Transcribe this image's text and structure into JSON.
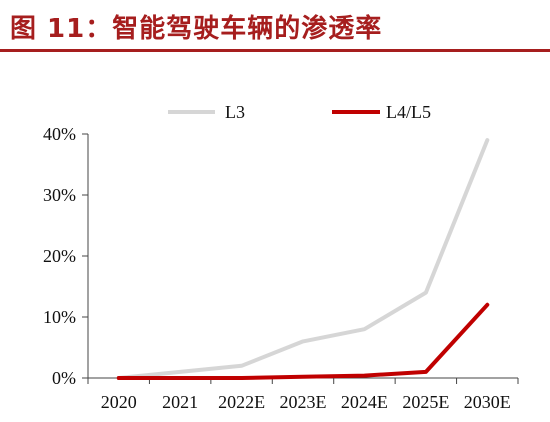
{
  "header": {
    "title": "图 11：智能驾驶车辆的渗透率"
  },
  "colors": {
    "title": "#a61e1e",
    "rule": "#a61e1e",
    "l3": "#d6d6d6",
    "l45": "#c00000"
  },
  "chart_data": {
    "type": "line",
    "categories": [
      "2020",
      "2021",
      "2022E",
      "2023E",
      "2024E",
      "2025E",
      "2030E"
    ],
    "series": [
      {
        "name": "L3",
        "values": [
          0,
          1,
          2,
          6,
          8,
          14,
          39
        ]
      },
      {
        "name": "L4/L5",
        "values": [
          0,
          0,
          0,
          0.2,
          0.4,
          1,
          12
        ]
      }
    ],
    "ylim": [
      0,
      40
    ],
    "yticks": [
      0,
      10,
      20,
      30,
      40
    ],
    "ytick_labels": [
      "0%",
      "10%",
      "20%",
      "30%",
      "40%"
    ],
    "xlabel": "",
    "ylabel": "",
    "grid": false,
    "legend": "top"
  }
}
